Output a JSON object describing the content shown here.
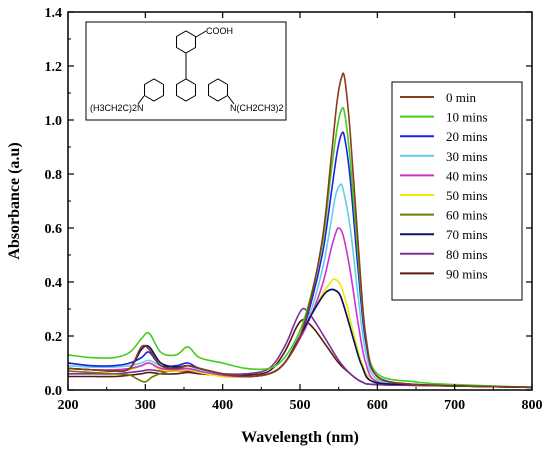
{
  "chart_data": {
    "type": "line",
    "xlabel": "Wavelength (nm)",
    "ylabel": "Absorbance (a.u)",
    "xlim": [
      200,
      800
    ],
    "ylim": [
      0,
      1.4
    ],
    "x_ticks": [
      200,
      300,
      400,
      500,
      600,
      700,
      800
    ],
    "y_ticks": [
      0.0,
      0.2,
      0.4,
      0.6,
      0.8,
      1.0,
      1.2,
      1.4
    ],
    "x_tick_labels": [
      "200",
      "300",
      "400",
      "500",
      "600",
      "700",
      "800"
    ],
    "y_tick_labels": [
      "0.0",
      "0.2",
      "0.4",
      "0.6",
      "0.8",
      "1.0",
      "1.2",
      "1.4"
    ],
    "grid": false,
    "legend_position": "top-right",
    "inset": {
      "label_cooh": "COOH",
      "label_left": "(H3CH2C)2N",
      "label_right": "N(CH2CH3)2"
    },
    "series": [
      {
        "name": "0 min",
        "color": "#8b3a1a",
        "points": [
          [
            200,
            0.08
          ],
          [
            230,
            0.075
          ],
          [
            260,
            0.07
          ],
          [
            280,
            0.08
          ],
          [
            295,
            0.16
          ],
          [
            305,
            0.15
          ],
          [
            320,
            0.09
          ],
          [
            340,
            0.08
          ],
          [
            355,
            0.09
          ],
          [
            370,
            0.08
          ],
          [
            400,
            0.06
          ],
          [
            430,
            0.05
          ],
          [
            460,
            0.06
          ],
          [
            480,
            0.1
          ],
          [
            500,
            0.2
          ],
          [
            515,
            0.35
          ],
          [
            530,
            0.58
          ],
          [
            540,
            0.85
          ],
          [
            548,
            1.07
          ],
          [
            554,
            1.16
          ],
          [
            558,
            1.15
          ],
          [
            565,
            0.95
          ],
          [
            575,
            0.55
          ],
          [
            585,
            0.2
          ],
          [
            600,
            0.05
          ],
          [
            650,
            0.02
          ],
          [
            700,
            0.015
          ],
          [
            800,
            0.01
          ]
        ]
      },
      {
        "name": "10 mins",
        "color": "#44cc22",
        "points": [
          [
            200,
            0.13
          ],
          [
            230,
            0.12
          ],
          [
            260,
            0.12
          ],
          [
            280,
            0.14
          ],
          [
            295,
            0.19
          ],
          [
            305,
            0.21
          ],
          [
            320,
            0.14
          ],
          [
            340,
            0.13
          ],
          [
            355,
            0.16
          ],
          [
            370,
            0.12
          ],
          [
            400,
            0.1
          ],
          [
            430,
            0.08
          ],
          [
            460,
            0.08
          ],
          [
            480,
            0.12
          ],
          [
            500,
            0.22
          ],
          [
            515,
            0.36
          ],
          [
            530,
            0.56
          ],
          [
            540,
            0.8
          ],
          [
            548,
            0.97
          ],
          [
            554,
            1.04
          ],
          [
            558,
            1.02
          ],
          [
            565,
            0.85
          ],
          [
            575,
            0.5
          ],
          [
            585,
            0.2
          ],
          [
            600,
            0.06
          ],
          [
            650,
            0.03
          ],
          [
            700,
            0.02
          ],
          [
            800,
            0.01
          ]
        ]
      },
      {
        "name": "20 mins",
        "color": "#1a22dd",
        "points": [
          [
            200,
            0.1
          ],
          [
            230,
            0.09
          ],
          [
            260,
            0.09
          ],
          [
            280,
            0.1
          ],
          [
            295,
            0.12
          ],
          [
            305,
            0.14
          ],
          [
            320,
            0.09
          ],
          [
            340,
            0.09
          ],
          [
            355,
            0.1
          ],
          [
            370,
            0.08
          ],
          [
            400,
            0.06
          ],
          [
            430,
            0.05
          ],
          [
            460,
            0.06
          ],
          [
            480,
            0.1
          ],
          [
            500,
            0.2
          ],
          [
            515,
            0.33
          ],
          [
            530,
            0.52
          ],
          [
            540,
            0.72
          ],
          [
            548,
            0.88
          ],
          [
            554,
            0.95
          ],
          [
            558,
            0.93
          ],
          [
            565,
            0.78
          ],
          [
            575,
            0.45
          ],
          [
            585,
            0.18
          ],
          [
            600,
            0.05
          ],
          [
            650,
            0.02
          ],
          [
            700,
            0.015
          ],
          [
            800,
            0.01
          ]
        ]
      },
      {
        "name": "30 mins",
        "color": "#66ccee",
        "points": [
          [
            200,
            0.09
          ],
          [
            230,
            0.085
          ],
          [
            260,
            0.085
          ],
          [
            280,
            0.09
          ],
          [
            295,
            0.1
          ],
          [
            305,
            0.11
          ],
          [
            320,
            0.09
          ],
          [
            340,
            0.085
          ],
          [
            355,
            0.09
          ],
          [
            370,
            0.075
          ],
          [
            400,
            0.06
          ],
          [
            430,
            0.05
          ],
          [
            460,
            0.06
          ],
          [
            480,
            0.1
          ],
          [
            500,
            0.2
          ],
          [
            515,
            0.3
          ],
          [
            530,
            0.46
          ],
          [
            540,
            0.62
          ],
          [
            546,
            0.72
          ],
          [
            552,
            0.76
          ],
          [
            556,
            0.74
          ],
          [
            565,
            0.6
          ],
          [
            575,
            0.35
          ],
          [
            585,
            0.14
          ],
          [
            600,
            0.04
          ],
          [
            650,
            0.02
          ],
          [
            700,
            0.015
          ],
          [
            800,
            0.01
          ]
        ]
      },
      {
        "name": "40 mins",
        "color": "#cc33cc",
        "points": [
          [
            200,
            0.08
          ],
          [
            230,
            0.075
          ],
          [
            260,
            0.075
          ],
          [
            280,
            0.08
          ],
          [
            295,
            0.09
          ],
          [
            305,
            0.1
          ],
          [
            320,
            0.08
          ],
          [
            340,
            0.075
          ],
          [
            355,
            0.08
          ],
          [
            370,
            0.07
          ],
          [
            400,
            0.055
          ],
          [
            430,
            0.05
          ],
          [
            460,
            0.06
          ],
          [
            480,
            0.1
          ],
          [
            500,
            0.19
          ],
          [
            515,
            0.28
          ],
          [
            530,
            0.4
          ],
          [
            540,
            0.52
          ],
          [
            546,
            0.58
          ],
          [
            550,
            0.6
          ],
          [
            556,
            0.57
          ],
          [
            565,
            0.44
          ],
          [
            575,
            0.25
          ],
          [
            585,
            0.1
          ],
          [
            600,
            0.03
          ],
          [
            650,
            0.02
          ],
          [
            700,
            0.015
          ],
          [
            800,
            0.01
          ]
        ]
      },
      {
        "name": "50 mins",
        "color": "#f2e600",
        "points": [
          [
            200,
            0.08
          ],
          [
            230,
            0.075
          ],
          [
            260,
            0.07
          ],
          [
            280,
            0.075
          ],
          [
            295,
            0.09
          ],
          [
            305,
            0.1
          ],
          [
            320,
            0.075
          ],
          [
            340,
            0.07
          ],
          [
            355,
            0.075
          ],
          [
            370,
            0.065
          ],
          [
            400,
            0.05
          ],
          [
            430,
            0.05
          ],
          [
            460,
            0.06
          ],
          [
            480,
            0.1
          ],
          [
            500,
            0.2
          ],
          [
            515,
            0.28
          ],
          [
            530,
            0.36
          ],
          [
            540,
            0.4
          ],
          [
            545,
            0.41
          ],
          [
            552,
            0.39
          ],
          [
            560,
            0.32
          ],
          [
            570,
            0.2
          ],
          [
            580,
            0.1
          ],
          [
            595,
            0.04
          ],
          [
            650,
            0.02
          ],
          [
            700,
            0.015
          ],
          [
            800,
            0.01
          ]
        ]
      },
      {
        "name": "60 mins",
        "color": "#6b7a00",
        "points": [
          [
            200,
            0.07
          ],
          [
            230,
            0.065
          ],
          [
            260,
            0.06
          ],
          [
            280,
            0.055
          ],
          [
            290,
            0.04
          ],
          [
            300,
            0.03
          ],
          [
            310,
            0.05
          ],
          [
            330,
            0.07
          ],
          [
            350,
            0.08
          ],
          [
            370,
            0.07
          ],
          [
            400,
            0.05
          ],
          [
            430,
            0.05
          ],
          [
            460,
            0.06
          ],
          [
            480,
            0.1
          ],
          [
            500,
            0.2
          ],
          [
            515,
            0.28
          ],
          [
            530,
            0.35
          ],
          [
            538,
            0.37
          ],
          [
            545,
            0.37
          ],
          [
            552,
            0.35
          ],
          [
            560,
            0.28
          ],
          [
            570,
            0.18
          ],
          [
            580,
            0.09
          ],
          [
            595,
            0.03
          ],
          [
            650,
            0.02
          ],
          [
            700,
            0.015
          ],
          [
            800,
            0.01
          ]
        ]
      },
      {
        "name": "70 mins",
        "color": "#0b1166",
        "points": [
          [
            200,
            0.08
          ],
          [
            230,
            0.075
          ],
          [
            260,
            0.07
          ],
          [
            280,
            0.08
          ],
          [
            295,
            0.15
          ],
          [
            305,
            0.16
          ],
          [
            320,
            0.1
          ],
          [
            340,
            0.085
          ],
          [
            355,
            0.09
          ],
          [
            370,
            0.08
          ],
          [
            400,
            0.06
          ],
          [
            430,
            0.05
          ],
          [
            460,
            0.06
          ],
          [
            480,
            0.1
          ],
          [
            500,
            0.2
          ],
          [
            515,
            0.28
          ],
          [
            530,
            0.35
          ],
          [
            538,
            0.37
          ],
          [
            545,
            0.37
          ],
          [
            552,
            0.35
          ],
          [
            560,
            0.28
          ],
          [
            570,
            0.18
          ],
          [
            580,
            0.09
          ],
          [
            595,
            0.03
          ],
          [
            650,
            0.02
          ],
          [
            700,
            0.015
          ],
          [
            800,
            0.01
          ]
        ]
      },
      {
        "name": "80 mins",
        "color": "#7a2f9a",
        "points": [
          [
            200,
            0.06
          ],
          [
            230,
            0.06
          ],
          [
            260,
            0.06
          ],
          [
            280,
            0.065
          ],
          [
            295,
            0.07
          ],
          [
            305,
            0.075
          ],
          [
            320,
            0.07
          ],
          [
            340,
            0.07
          ],
          [
            355,
            0.07
          ],
          [
            370,
            0.065
          ],
          [
            400,
            0.06
          ],
          [
            430,
            0.06
          ],
          [
            460,
            0.08
          ],
          [
            480,
            0.16
          ],
          [
            495,
            0.26
          ],
          [
            503,
            0.3
          ],
          [
            510,
            0.29
          ],
          [
            520,
            0.25
          ],
          [
            535,
            0.18
          ],
          [
            550,
            0.11
          ],
          [
            565,
            0.06
          ],
          [
            580,
            0.03
          ],
          [
            600,
            0.02
          ],
          [
            700,
            0.015
          ],
          [
            800,
            0.01
          ]
        ]
      },
      {
        "name": "90 mins",
        "color": "#5a1a10",
        "points": [
          [
            200,
            0.05
          ],
          [
            230,
            0.05
          ],
          [
            260,
            0.05
          ],
          [
            280,
            0.055
          ],
          [
            295,
            0.06
          ],
          [
            305,
            0.065
          ],
          [
            320,
            0.06
          ],
          [
            340,
            0.06
          ],
          [
            355,
            0.065
          ],
          [
            370,
            0.06
          ],
          [
            400,
            0.055
          ],
          [
            430,
            0.055
          ],
          [
            460,
            0.07
          ],
          [
            480,
            0.14
          ],
          [
            495,
            0.23
          ],
          [
            503,
            0.26
          ],
          [
            510,
            0.25
          ],
          [
            520,
            0.22
          ],
          [
            535,
            0.16
          ],
          [
            550,
            0.1
          ],
          [
            565,
            0.06
          ],
          [
            580,
            0.03
          ],
          [
            600,
            0.02
          ],
          [
            700,
            0.015
          ],
          [
            800,
            0.01
          ]
        ]
      }
    ]
  }
}
